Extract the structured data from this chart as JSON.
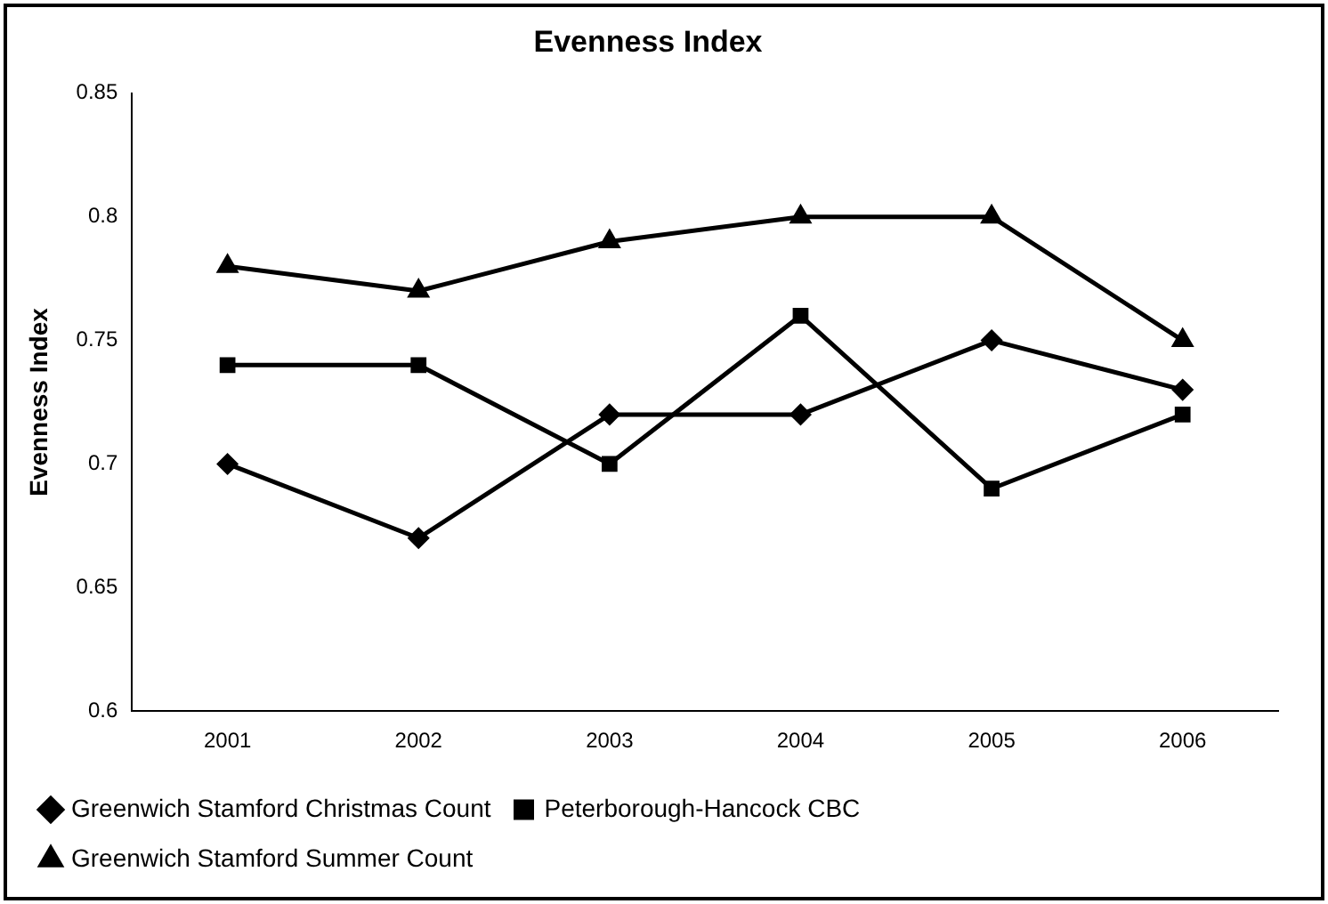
{
  "chart_data": {
    "type": "line",
    "title": "Evenness Index",
    "ylabel": "Evenness Index",
    "categories": [
      "2001",
      "2002",
      "2003",
      "2004",
      "2005",
      "2006"
    ],
    "series": [
      {
        "name": "Greenwich Stamford Christmas Count",
        "color": "#000000",
        "marker": "diamond",
        "values": [
          0.7,
          0.67,
          0.72,
          0.72,
          0.75,
          0.73
        ]
      },
      {
        "name": "Peterborough-Hancock CBC",
        "color": "#000000",
        "marker": "square",
        "values": [
          0.74,
          0.74,
          0.7,
          0.76,
          0.69,
          0.72
        ]
      },
      {
        "name": "Greenwich Stamford Summer Count",
        "color": "#000000",
        "marker": "triangle",
        "values": [
          0.78,
          0.77,
          0.79,
          0.8,
          0.8,
          0.75
        ]
      }
    ],
    "ylim": [
      0.6,
      0.85
    ],
    "yticks": [
      0.6,
      0.65,
      0.7,
      0.75,
      0.8,
      0.85
    ],
    "grid": false,
    "legend": "bottom",
    "line_style": "solid"
  }
}
